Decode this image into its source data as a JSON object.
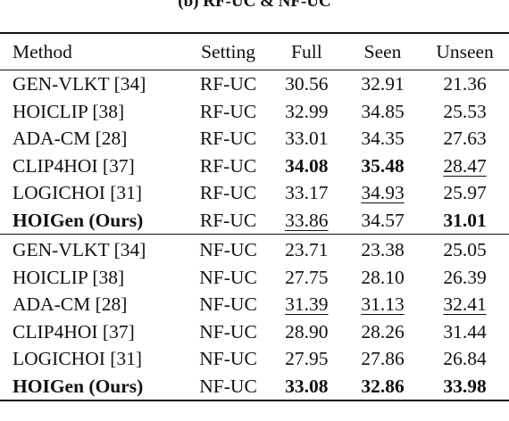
{
  "caption": "(b) RF-UC & NF-UC",
  "table": {
    "headers": [
      "Method",
      "Setting",
      "Full",
      "Seen",
      "Unseen"
    ],
    "block_rf": [
      {
        "method": "GEN-VLKT [34]",
        "setting": "RF-UC",
        "full": "30.56",
        "seen": "32.91",
        "unseen": "21.36",
        "bold": [],
        "underline": []
      },
      {
        "method": "HOICLIP [38]",
        "setting": "RF-UC",
        "full": "32.99",
        "seen": "34.85",
        "unseen": "25.53",
        "bold": [],
        "underline": []
      },
      {
        "method": "ADA-CM [28]",
        "setting": "RF-UC",
        "full": "33.01",
        "seen": "34.35",
        "unseen": "27.63",
        "bold": [],
        "underline": []
      },
      {
        "method": "CLIP4HOI [37]",
        "setting": "RF-UC",
        "full": "34.08",
        "seen": "35.48",
        "unseen": "28.47",
        "bold": [
          "full",
          "seen"
        ],
        "underline": [
          "unseen"
        ]
      },
      {
        "method": "LOGICHOI [31]",
        "setting": "RF-UC",
        "full": "33.17",
        "seen": "34.93",
        "unseen": "25.97",
        "bold": [],
        "underline": [
          "seen"
        ]
      },
      {
        "method": "HOIGen (Ours)",
        "setting": "RF-UC",
        "full": "33.86",
        "seen": "34.57",
        "unseen": "31.01",
        "bold": [
          "method",
          "unseen"
        ],
        "underline": [
          "full"
        ]
      }
    ],
    "block_nf": [
      {
        "method": "GEN-VLKT [34]",
        "setting": "NF-UC",
        "full": "23.71",
        "seen": "23.38",
        "unseen": "25.05",
        "bold": [],
        "underline": []
      },
      {
        "method": "HOICLIP [38]",
        "setting": "NF-UC",
        "full": "27.75",
        "seen": "28.10",
        "unseen": "26.39",
        "bold": [],
        "underline": []
      },
      {
        "method": "ADA-CM [28]",
        "setting": "NF-UC",
        "full": "31.39",
        "seen": "31.13",
        "unseen": "32.41",
        "bold": [],
        "underline": [
          "full",
          "seen",
          "unseen"
        ]
      },
      {
        "method": "CLIP4HOI [37]",
        "setting": "NF-UC",
        "full": "28.90",
        "seen": "28.26",
        "unseen": "31.44",
        "bold": [],
        "underline": []
      },
      {
        "method": "LOGICHOI [31]",
        "setting": "NF-UC",
        "full": "27.95",
        "seen": "27.86",
        "unseen": "26.84",
        "bold": [],
        "underline": []
      },
      {
        "method": "HOIGen (Ours)",
        "setting": "NF-UC",
        "full": "33.08",
        "seen": "32.86",
        "unseen": "33.98",
        "bold": [
          "method",
          "full",
          "seen",
          "unseen"
        ],
        "underline": []
      }
    ]
  }
}
